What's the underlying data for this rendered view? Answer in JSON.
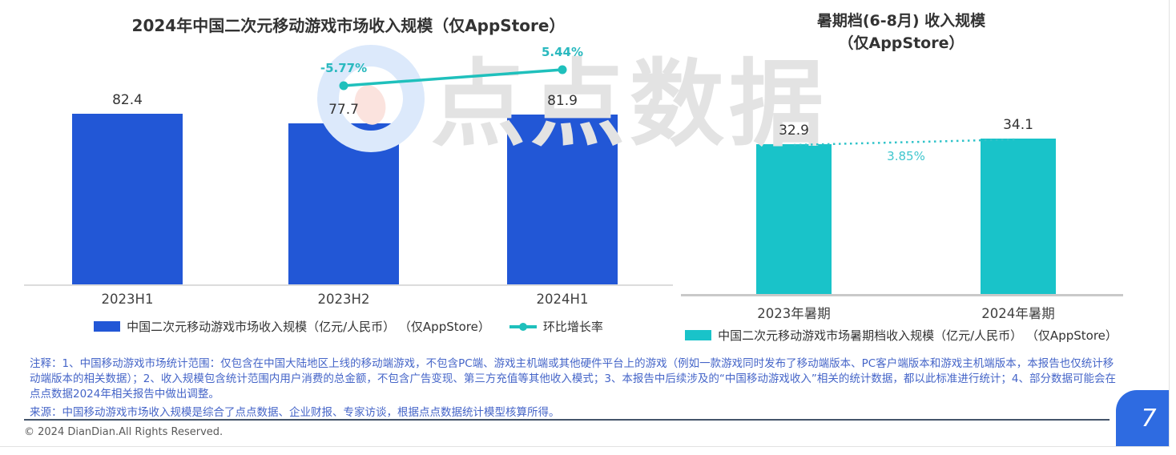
{
  "colors": {
    "bar_blue": "#2257D6",
    "bar_teal": "#19C3C9",
    "growth_line_teal": "#1FC0BC",
    "growth_label_teal": "#2AB9BF",
    "dotted_line_teal": "#2FC3C9",
    "notes_blue": "#4565C8",
    "divider_navy": "#44546A",
    "page_badge_blue": "#2E6BE1",
    "watermark_gray": "#E3E3E3"
  },
  "watermark": {
    "text": "点点数据"
  },
  "left_chart": {
    "title": "2024年中国二次元移动游戏市场收入规模（仅AppStore）",
    "legend_bar_label": "中国二次元移动游戏市场收入规模（亿元/人民币） （仅AppStore）",
    "legend_line_label": "环比增长率"
  },
  "right_chart": {
    "title_line1": "暑期档(6-8月) 收入规模",
    "title_line2": "（仅AppStore）",
    "legend_bar_label": "中国二次元移动游戏市场暑期档收入规模（亿元/人民币） （仅AppStore）"
  },
  "footer": {
    "notes": "注释：1、中国移动游戏市场统计范围：仅包含在中国大陆地区上线的移动端游戏，不包含PC端、游戏主机端或其他硬件平台上的游戏（例如一款游戏同时发布了移动端版本、PC客户端版本和游戏主机端版本，本报告也仅统计移动端版本的相关数据）；2、收入规模包含统计范围内用户消费的总金额，不包含广告变现、第三方充值等其他收入模式；3、本报告中后续涉及的“中国移动游戏收入”相关的统计数据，都以此标准进行统计；4、部分数据可能会在点点数据2024年相关报告中做出调整。",
    "source": "来源：中国移动游戏市场收入规模是综合了点点数据、企业财报、专家访谈，根据点点数据统计模型核算所得。",
    "copyright": "© 2024 DianDian.All Rights Reserved.",
    "page_number": "7"
  },
  "chart_data": [
    {
      "type": "bar",
      "title": "2024年中国二次元移动游戏市场收入规模（仅AppStore）",
      "categories": [
        "2023H1",
        "2023H2",
        "2024H1"
      ],
      "series": [
        {
          "name": "中国二次元移动游戏市场收入规模（亿元/人民币）（仅AppStore）",
          "type": "bar",
          "values": [
            82.4,
            77.7,
            81.9
          ],
          "unit": "亿元/人民币",
          "color": "#2257D6"
        },
        {
          "name": "环比增长率",
          "type": "line",
          "values": [
            null,
            -5.77,
            5.44
          ],
          "display": [
            "",
            "-5.77%",
            "5.44%"
          ],
          "unit": "%",
          "color": "#1FC0BC"
        }
      ],
      "data_labels": true,
      "legend_position": "bottom",
      "grid": false,
      "y_axis_visible": false
    },
    {
      "type": "bar",
      "title": "暑期档(6-8月) 收入规模（仅AppStore）",
      "categories": [
        "2023年暑期",
        "2024年暑期"
      ],
      "values": [
        32.9,
        34.1
      ],
      "unit": "亿元/人民币",
      "bar_color": "#19C3C9",
      "growth_value": 3.85,
      "growth_label": "3.85%",
      "data_labels": true,
      "legend_position": "bottom",
      "grid": false,
      "y_axis_visible": false
    }
  ]
}
